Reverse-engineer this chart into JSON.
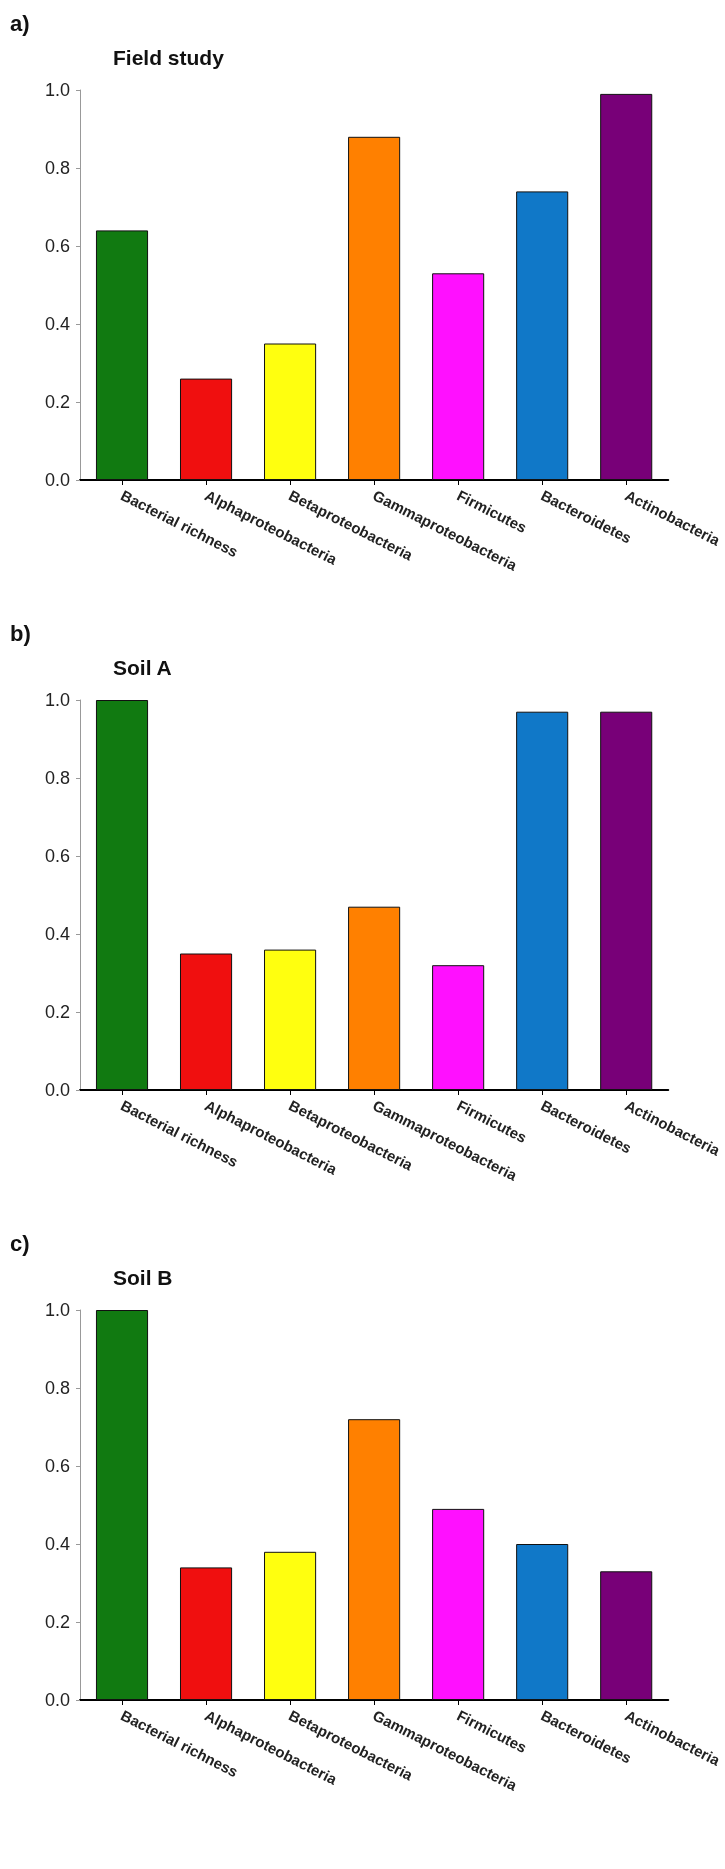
{
  "chart_data": [
    {
      "type": "bar",
      "title": "Field study",
      "annotations": [
        "a)"
      ],
      "categories": [
        "Bacterial richness",
        "Alphaproteobacteria",
        "Betaproteobacteria",
        "Gammaproteobacteria",
        "Firmicutes",
        "Bacteroidetes",
        "Actinobacteria"
      ],
      "values": [
        0.64,
        0.26,
        0.35,
        0.88,
        0.53,
        0.74,
        0.99
      ],
      "colors": [
        "#117a11",
        "#f00f0f",
        "#ffff0f",
        "#ff8000",
        "#ff10ff",
        "#1078c8",
        "#780078"
      ],
      "ylim": [
        0,
        1
      ],
      "yticks": [
        {
          "value": 0,
          "label": "0.0"
        },
        {
          "value": 0.2,
          "label": "0.2"
        },
        {
          "value": 0.4,
          "label": "0.4"
        },
        {
          "value": 0.6,
          "label": "0.6"
        },
        {
          "value": 0.8,
          "label": "0.8"
        },
        {
          "value": 1,
          "label": "1.0"
        }
      ],
      "grid": false
    },
    {
      "type": "bar",
      "title": "Soil A",
      "annotations": [
        "b)"
      ],
      "categories": [
        "Bacterial richness",
        "Alphaproteobacteria",
        "Betaproteobacteria",
        "Gammaproteobacteria",
        "Firmicutes",
        "Bacteroidetes",
        "Actinobacteria"
      ],
      "values": [
        1.0,
        0.35,
        0.36,
        0.47,
        0.32,
        0.97,
        0.97
      ],
      "colors": [
        "#117a11",
        "#f00f0f",
        "#ffff0f",
        "#ff8000",
        "#ff10ff",
        "#1078c8",
        "#780078"
      ],
      "ylim": [
        0,
        1
      ],
      "yticks": [
        {
          "value": 0,
          "label": "0.0"
        },
        {
          "value": 0.2,
          "label": "0.2"
        },
        {
          "value": 0.4,
          "label": "0.4"
        },
        {
          "value": 0.6,
          "label": "0.6"
        },
        {
          "value": 0.8,
          "label": "0.8"
        },
        {
          "value": 1,
          "label": "1.0"
        }
      ],
      "grid": false
    },
    {
      "type": "bar",
      "title": "Soil B",
      "annotations": [
        "c)"
      ],
      "categories": [
        "Bacterial richness",
        "Alphaproteobacteria",
        "Betaproteobacteria",
        "Gammaproteobacteria",
        "Firmicutes",
        "Bacteroidetes",
        "Actinobacteria"
      ],
      "values": [
        1.0,
        0.34,
        0.38,
        0.72,
        0.49,
        0.4,
        0.33
      ],
      "colors": [
        "#117a11",
        "#f00f0f",
        "#ffff0f",
        "#ff8000",
        "#ff10ff",
        "#1078c8",
        "#780078"
      ],
      "ylim": [
        0,
        1
      ],
      "yticks": [
        {
          "value": 0,
          "label": "0.0"
        },
        {
          "value": 0.2,
          "label": "0.2"
        },
        {
          "value": 0.4,
          "label": "0.4"
        },
        {
          "value": 0.6,
          "label": "0.6"
        },
        {
          "value": 0.8,
          "label": "0.8"
        },
        {
          "value": 1,
          "label": "1.0"
        }
      ],
      "grid": false
    }
  ]
}
